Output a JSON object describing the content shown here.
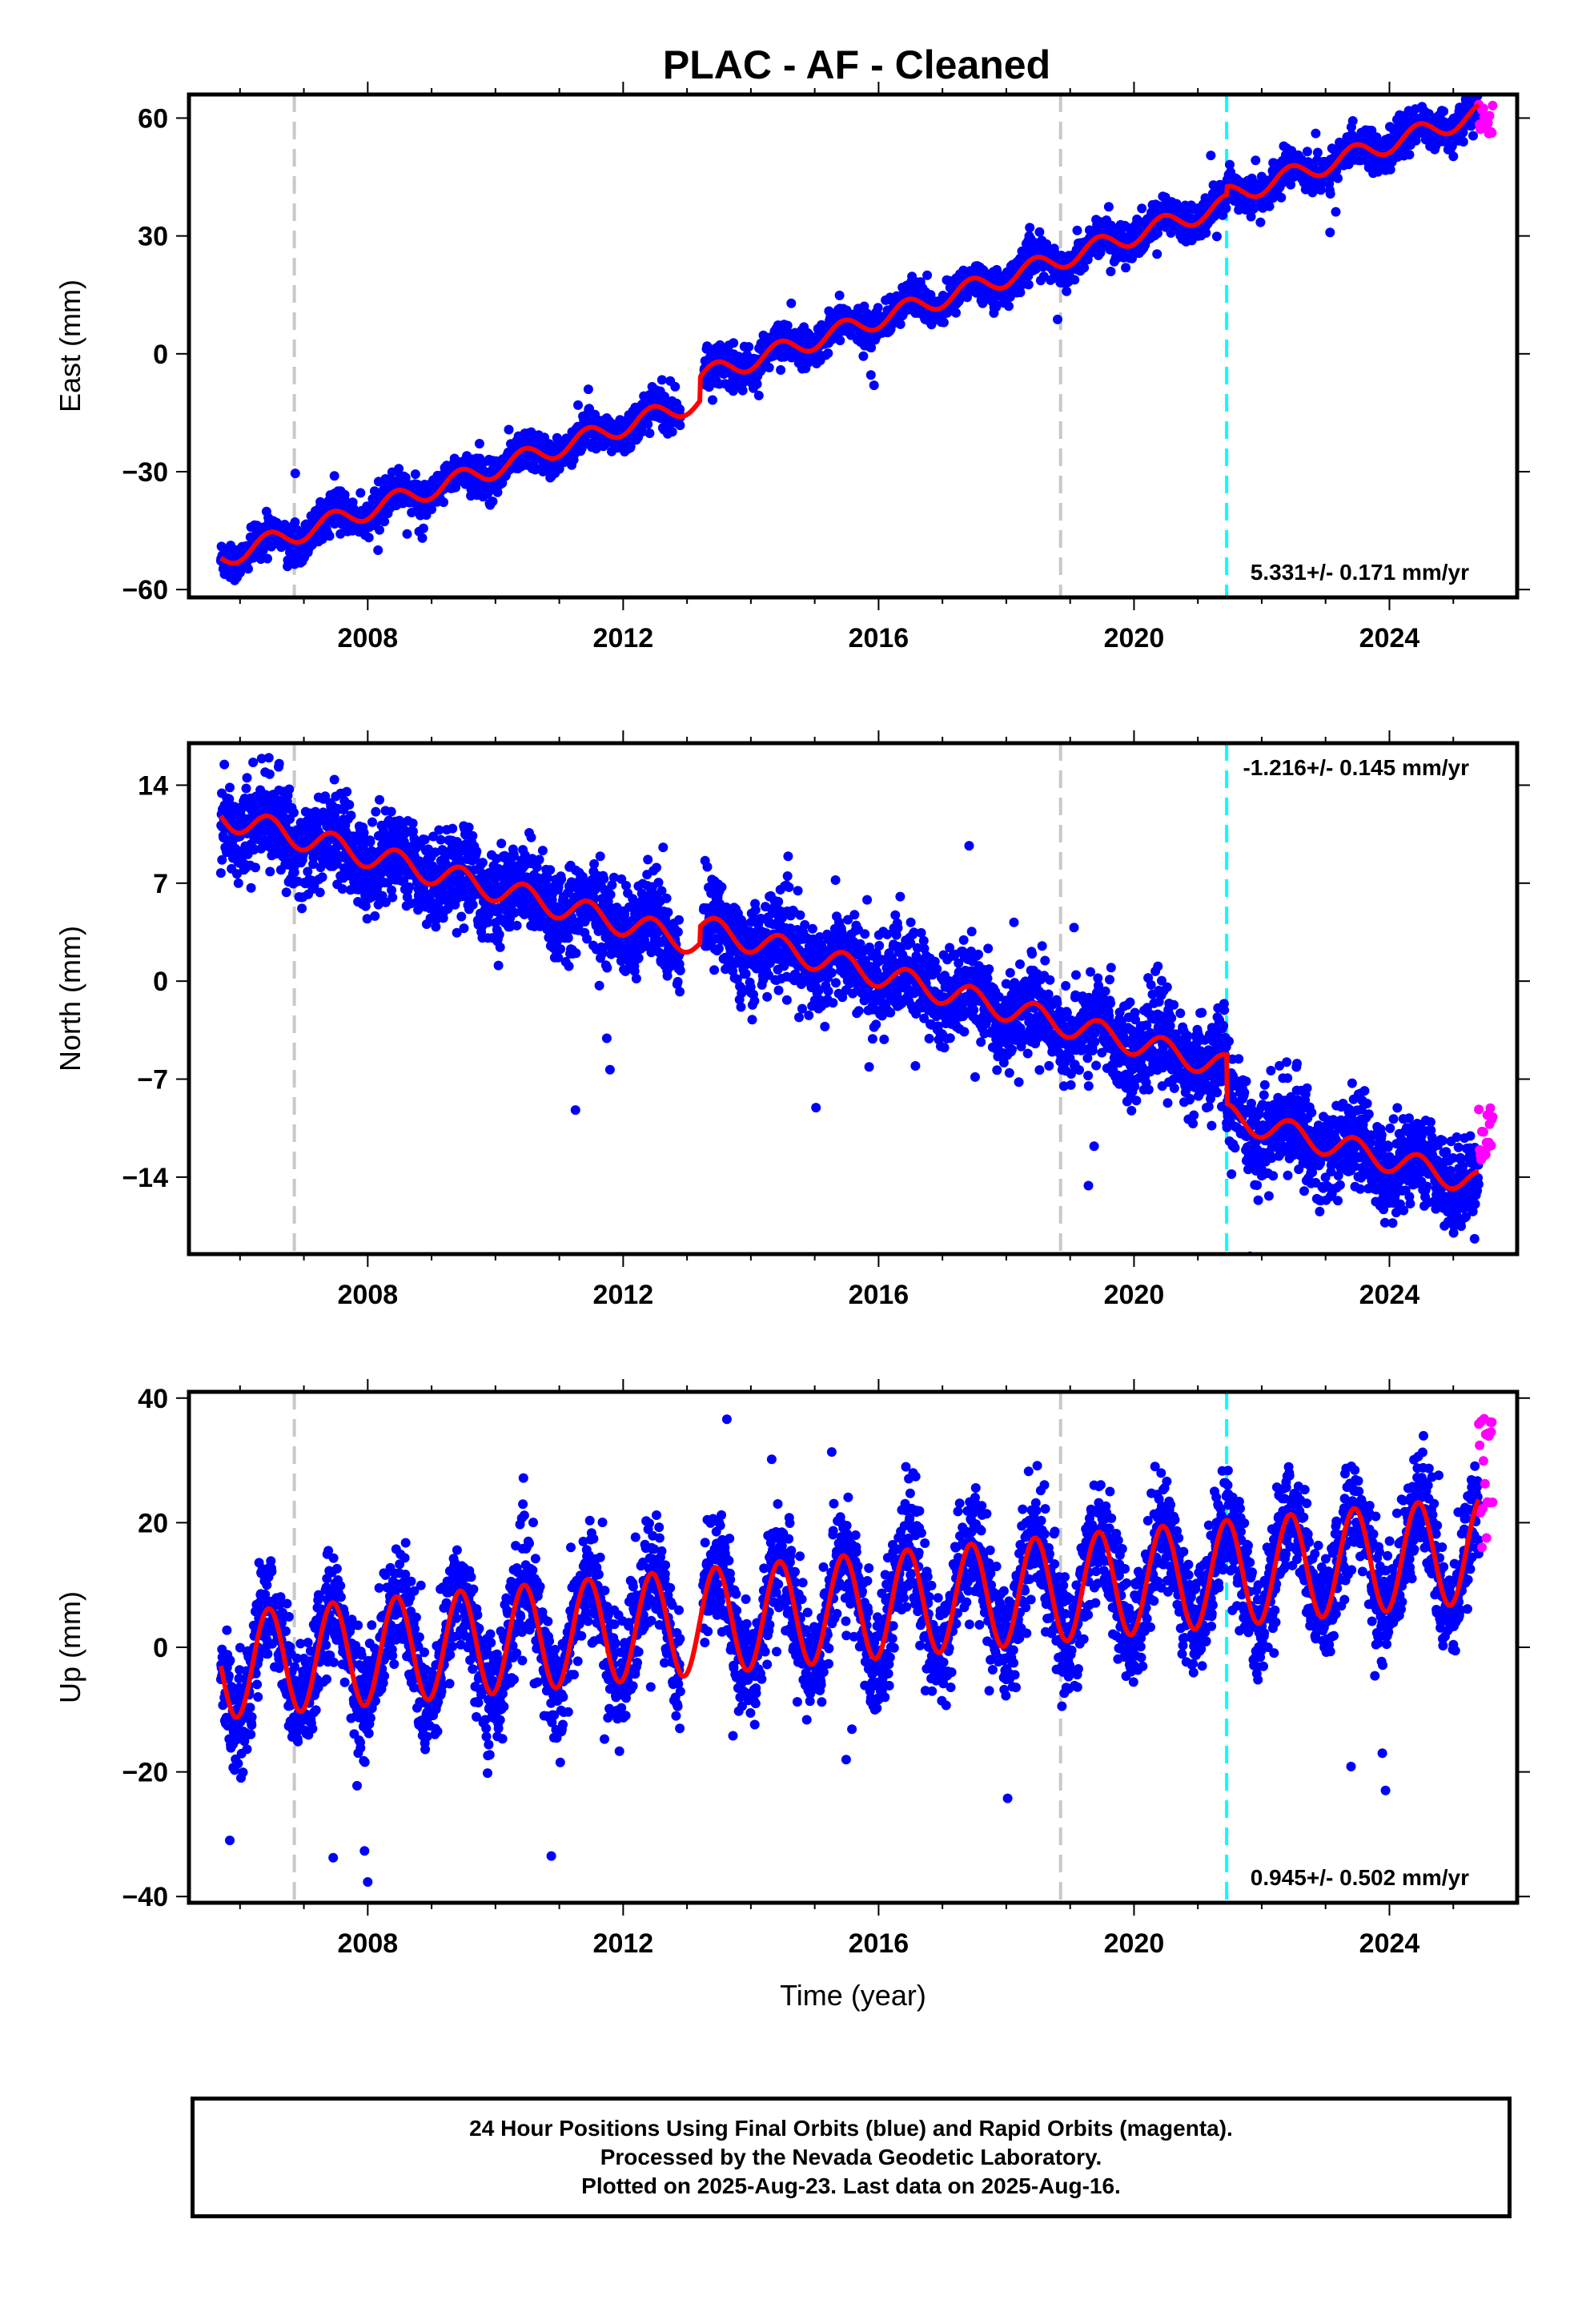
{
  "title": "PLAC  - AF - Cleaned",
  "footer": {
    "line1": "24 Hour Positions Using Final Orbits (blue) and Rapid Orbits (magenta).",
    "line2": "Processed by the Nevada Geodetic Laboratory.",
    "line3": "Plotted on 2025-Aug-23. Last data on 2025-Aug-16."
  },
  "colors": {
    "final_orbits": "#0000ff",
    "rapid_orbits": "#ff00ff",
    "model": "#ff0000",
    "equipment_change": "#c8c8c8",
    "earthquake": "#00ffff"
  },
  "chart_data": [
    {
      "type": "scatter",
      "panel": "east",
      "ylabel": "East (mm)",
      "xlabel": "",
      "xlim": [
        2005.2,
        2026.0
      ],
      "ylim": [
        -62,
        66
      ],
      "xticks": [
        2008,
        2012,
        2016,
        2020,
        2024
      ],
      "yticks": [
        -60,
        -30,
        0,
        30,
        60
      ],
      "tick_labels": [
        "−60",
        "−30",
        "0",
        "30",
        "60"
      ],
      "rate_text": "5.331+/- 0.171 mm/yr",
      "rate_position": "bottom-right",
      "trend": {
        "start_year": 2005.7,
        "start_value": -52.0,
        "slope_mm_per_yr": 5.331
      },
      "seasonal_amplitude": 2.5,
      "offsets": [
        {
          "year": 2013.2,
          "value": 6
        },
        {
          "year": 2021.45,
          "value": 2
        }
      ],
      "scatter_spread": 2.2,
      "final_orbit_range": [
        2005.7,
        2025.4
      ],
      "rapid_orbit_range": [
        2025.4,
        2025.62
      ],
      "rapid_values_range": [
        56,
        64
      ],
      "equipment_changes": [
        2006.85,
        2018.85
      ],
      "earthquakes": [
        2021.45
      ]
    },
    {
      "type": "scatter",
      "panel": "north",
      "ylabel": "North (mm)",
      "xlabel": "",
      "xlim": [
        2005.2,
        2026.0
      ],
      "ylim": [
        -19.5,
        17
      ],
      "xticks": [
        2008,
        2012,
        2016,
        2020,
        2024
      ],
      "yticks": [
        -14,
        -7,
        0,
        7,
        14
      ],
      "tick_labels": [
        "−14",
        "−7",
        "0",
        "7",
        "14"
      ],
      "rate_text": "-1.216+/- 0.145 mm/yr",
      "rate_position": "top-right",
      "trend": {
        "start_year": 2005.7,
        "start_value": 11.8,
        "slope_mm_per_yr": -1.216
      },
      "seasonal_amplitude": 0.9,
      "offsets": [
        {
          "year": 2013.2,
          "value": 1.2
        },
        {
          "year": 2021.45,
          "value": -3.5
        }
      ],
      "scatter_spread": 1.6,
      "final_orbit_range": [
        2005.7,
        2025.4
      ],
      "rapid_orbit_range": [
        2025.4,
        2025.62
      ],
      "rapid_values_range": [
        -13,
        -9
      ],
      "equipment_changes": [
        2006.85,
        2018.85
      ],
      "earthquakes": [
        2021.45
      ]
    },
    {
      "type": "scatter",
      "panel": "up",
      "ylabel": "Up (mm)",
      "xlabel": "Time (year)",
      "xlim": [
        2005.2,
        2026.0
      ],
      "ylim": [
        -41,
        41
      ],
      "xticks": [
        2008,
        2012,
        2016,
        2020,
        2024
      ],
      "yticks": [
        -40,
        -20,
        0,
        20,
        40
      ],
      "tick_labels": [
        "−40",
        "−20",
        "0",
        "20",
        "40"
      ],
      "rate_text": "0.945+/- 0.502 mm/yr",
      "rate_position": "bottom-right",
      "trend": {
        "start_year": 2005.7,
        "start_value": -3.0,
        "slope_mm_per_yr": 0.945
      },
      "seasonal_amplitude": 8.5,
      "offsets": [],
      "scatter_spread": 4.5,
      "final_orbit_range": [
        2005.7,
        2025.4
      ],
      "rapid_orbit_range": [
        2025.4,
        2025.62
      ],
      "rapid_values_range": [
        16,
        37
      ],
      "equipment_changes": [
        2006.85,
        2018.85
      ],
      "earthquakes": [
        2021.45
      ]
    }
  ]
}
